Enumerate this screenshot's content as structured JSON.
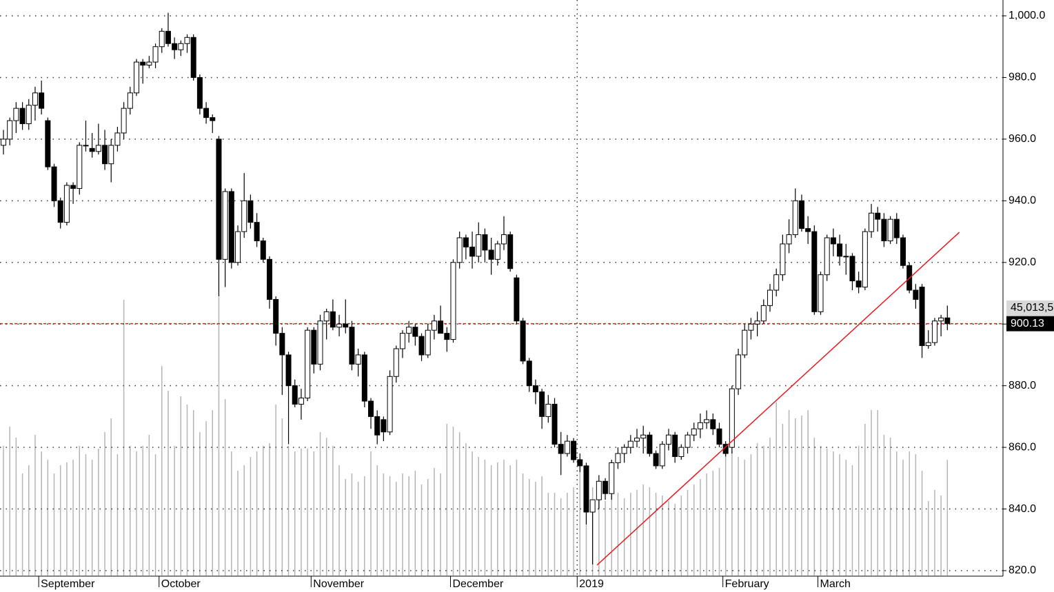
{
  "chart_data": {
    "type": "candlestick",
    "candles": [
      [
        958,
        963,
        955,
        960
      ],
      [
        960,
        967,
        958,
        966
      ],
      [
        966,
        972,
        962,
        970
      ],
      [
        970,
        972,
        963,
        965
      ],
      [
        965,
        973,
        963,
        971
      ],
      [
        971,
        977,
        966,
        975
      ],
      [
        975,
        979,
        968,
        970
      ],
      [
        966,
        967,
        950,
        951
      ],
      [
        951,
        952,
        938,
        940
      ],
      [
        940,
        941,
        931,
        933
      ],
      [
        933,
        946,
        932,
        945
      ],
      [
        945,
        946,
        939,
        944
      ],
      [
        944,
        959,
        942,
        958
      ],
      [
        958,
        966,
        956,
        958
      ],
      [
        957,
        962,
        954,
        956
      ],
      [
        956,
        965,
        955,
        958
      ],
      [
        958,
        963,
        950,
        952
      ],
      [
        952,
        960,
        946,
        958
      ],
      [
        958,
        964,
        956,
        962
      ],
      [
        962,
        972,
        960,
        970
      ],
      [
        970,
        977,
        968,
        975
      ],
      [
        975,
        986,
        974,
        985
      ],
      [
        985,
        986,
        978,
        984
      ],
      [
        984,
        987,
        983,
        985
      ],
      [
        985,
        991,
        983,
        990
      ],
      [
        990,
        996,
        988,
        995
      ],
      [
        995,
        1001,
        990,
        991
      ],
      [
        991,
        993,
        986,
        989
      ],
      [
        989,
        992,
        987,
        991
      ],
      [
        991,
        994,
        988,
        993
      ],
      [
        993,
        994,
        979,
        980
      ],
      [
        980,
        981,
        968,
        970
      ],
      [
        970,
        972,
        965,
        967
      ],
      [
        967,
        968,
        962,
        966
      ],
      [
        960,
        961,
        909,
        921
      ],
      [
        921,
        944,
        912,
        943
      ],
      [
        943,
        944,
        918,
        920
      ],
      [
        920,
        932,
        919,
        930
      ],
      [
        930,
        949,
        928,
        940
      ],
      [
        940,
        942,
        931,
        933
      ],
      [
        933,
        936,
        925,
        927
      ],
      [
        927,
        928,
        920,
        921
      ],
      [
        921,
        922,
        905,
        908
      ],
      [
        908,
        909,
        893,
        897
      ],
      [
        897,
        899,
        877,
        890
      ],
      [
        890,
        891,
        861,
        880
      ],
      [
        880,
        882,
        873,
        874
      ],
      [
        874,
        879,
        869,
        876
      ],
      [
        876,
        899,
        875,
        898
      ],
      [
        898,
        899,
        884,
        887
      ],
      [
        887,
        903,
        885,
        901
      ],
      [
        901,
        905,
        895,
        904
      ],
      [
        904,
        908,
        898,
        899
      ],
      [
        899,
        903,
        896,
        900
      ],
      [
        900,
        908,
        897,
        899
      ],
      [
        899,
        901,
        885,
        887
      ],
      [
        887,
        892,
        883,
        890
      ],
      [
        890,
        891,
        873,
        875
      ],
      [
        875,
        876,
        866,
        870
      ],
      [
        870,
        872,
        861,
        864
      ],
      [
        869,
        870,
        862,
        865
      ],
      [
        865,
        885,
        864,
        883
      ],
      [
        883,
        893,
        881,
        892
      ],
      [
        892,
        898,
        889,
        897
      ],
      [
        897,
        901,
        894,
        899
      ],
      [
        899,
        900,
        893,
        896
      ],
      [
        896,
        897,
        888,
        890
      ],
      [
        890,
        900,
        889,
        898
      ],
      [
        898,
        903,
        895,
        901
      ],
      [
        901,
        906,
        897,
        897
      ],
      [
        897,
        899,
        891,
        895
      ],
      [
        895,
        921,
        894,
        920
      ],
      [
        920,
        930,
        918,
        928
      ],
      [
        928,
        929,
        921,
        925
      ],
      [
        925,
        930,
        918,
        922
      ],
      [
        922,
        933,
        920,
        929
      ],
      [
        929,
        931,
        920,
        924
      ],
      [
        924,
        928,
        916,
        921
      ],
      [
        921,
        927,
        919,
        926
      ],
      [
        926,
        935,
        924,
        929
      ],
      [
        929,
        930,
        917,
        918
      ],
      [
        915,
        916,
        900,
        901
      ],
      [
        901,
        902,
        887,
        888
      ],
      [
        888,
        889,
        878,
        880
      ],
      [
        880,
        882,
        874,
        878
      ],
      [
        878,
        879,
        866,
        870
      ],
      [
        870,
        877,
        868,
        874
      ],
      [
        874,
        876,
        860,
        861
      ],
      [
        861,
        865,
        851,
        858
      ],
      [
        858,
        864,
        857,
        862
      ],
      [
        862,
        863,
        855,
        856
      ],
      [
        856,
        858,
        852,
        854
      ],
      [
        854,
        855,
        835,
        839
      ],
      [
        839,
        843,
        822,
        843
      ],
      [
        843,
        851,
        840,
        849
      ],
      [
        849,
        850,
        843,
        845
      ],
      [
        845,
        856,
        843,
        855
      ],
      [
        855,
        860,
        853,
        858
      ],
      [
        858,
        861,
        855,
        860
      ],
      [
        860,
        864,
        858,
        862
      ],
      [
        862,
        866,
        860,
        863
      ],
      [
        863,
        867,
        858,
        864
      ],
      [
        864,
        865,
        857,
        858
      ],
      [
        858,
        859,
        853,
        854
      ],
      [
        854,
        862,
        853,
        861
      ],
      [
        861,
        866,
        859,
        864
      ],
      [
        864,
        865,
        855,
        857
      ],
      [
        857,
        861,
        856,
        860
      ],
      [
        860,
        865,
        858,
        864
      ],
      [
        864,
        868,
        862,
        866
      ],
      [
        866,
        871,
        863,
        868
      ],
      [
        868,
        872,
        866,
        869
      ],
      [
        869,
        871,
        864,
        866
      ],
      [
        866,
        868,
        860,
        861
      ],
      [
        861,
        862,
        857,
        858
      ],
      [
        860,
        880,
        858,
        879
      ],
      [
        879,
        892,
        877,
        890
      ],
      [
        890,
        900,
        889,
        898
      ],
      [
        898,
        902,
        895,
        900
      ],
      [
        900,
        904,
        896,
        901
      ],
      [
        901,
        908,
        900,
        906
      ],
      [
        906,
        913,
        904,
        911
      ],
      [
        911,
        918,
        909,
        916
      ],
      [
        916,
        929,
        914,
        926
      ],
      [
        926,
        934,
        923,
        929
      ],
      [
        929,
        944,
        928,
        940
      ],
      [
        940,
        942,
        930,
        931
      ],
      [
        931,
        935,
        926,
        930
      ],
      [
        930,
        932,
        903,
        904
      ],
      [
        904,
        917,
        903,
        916
      ],
      [
        916,
        929,
        914,
        928
      ],
      [
        928,
        931,
        922,
        926
      ],
      [
        926,
        929,
        919,
        922
      ],
      [
        922,
        926,
        916,
        922
      ],
      [
        922,
        923,
        911,
        914
      ],
      [
        914,
        917,
        910,
        912
      ],
      [
        912,
        931,
        911,
        930
      ],
      [
        930,
        939,
        928,
        936
      ],
      [
        936,
        938,
        930,
        934
      ],
      [
        934,
        936,
        925,
        927
      ],
      [
        927,
        935,
        926,
        934
      ],
      [
        934,
        936,
        926,
        928
      ],
      [
        928,
        929,
        918,
        919
      ],
      [
        919,
        920,
        910,
        911
      ],
      [
        911,
        913,
        905,
        908
      ],
      [
        912,
        913,
        889,
        893
      ],
      [
        893,
        898,
        892,
        894
      ],
      [
        894,
        902,
        893,
        901
      ],
      [
        901,
        903,
        896,
        902
      ],
      [
        902,
        906,
        898,
        900.13
      ]
    ],
    "volume": [
      47,
      54,
      50,
      37,
      40,
      51,
      45,
      42,
      37,
      40,
      41,
      42,
      47,
      44,
      42,
      46,
      52,
      57,
      44,
      100,
      47,
      45,
      47,
      51,
      44,
      76,
      67,
      47,
      65,
      62,
      60,
      52,
      56,
      60,
      101,
      64,
      45,
      38,
      40,
      43,
      45,
      47,
      48,
      62,
      57,
      47,
      45,
      46,
      46,
      45,
      52,
      50,
      47,
      40,
      35,
      37,
      34,
      36,
      45,
      40,
      37,
      36,
      34,
      37,
      36,
      38,
      33,
      35,
      39,
      37,
      55,
      54,
      52,
      48,
      45,
      43,
      42,
      40,
      41,
      42,
      40,
      42,
      37,
      35,
      34,
      36,
      30,
      30,
      28,
      30,
      32,
      38,
      35,
      32,
      30,
      27,
      29,
      30,
      28,
      30,
      31,
      33,
      32,
      30,
      29,
      27,
      26,
      29,
      31,
      33,
      35,
      37,
      38,
      39,
      44,
      45,
      43,
      42,
      44,
      48,
      47,
      50,
      63,
      55,
      60,
      57,
      58,
      60,
      50,
      47,
      46,
      45,
      44,
      42,
      40,
      47,
      55,
      60,
      60,
      51,
      50,
      45,
      42,
      45,
      44,
      38,
      27,
      31,
      29,
      42
    ],
    "volume_lim": [
      0,
      105
    ],
    "volume_label": "45,013,5",
    "categories": [
      null,
      null,
      null,
      null,
      null,
      null,
      "September",
      null,
      null,
      null,
      null,
      null,
      null,
      null,
      null,
      null,
      null,
      null,
      null,
      null,
      null,
      null,
      null,
      null,
      null,
      "October",
      null,
      null,
      null,
      null,
      null,
      null,
      null,
      null,
      null,
      null,
      null,
      null,
      null,
      null,
      null,
      null,
      null,
      null,
      null,
      null,
      null,
      null,
      null,
      "November",
      null,
      null,
      null,
      null,
      null,
      null,
      null,
      null,
      null,
      null,
      null,
      null,
      null,
      null,
      null,
      null,
      null,
      null,
      null,
      null,
      null,
      "December",
      null,
      null,
      null,
      null,
      null,
      null,
      null,
      null,
      null,
      null,
      null,
      null,
      null,
      null,
      null,
      null,
      null,
      null,
      null,
      "2019",
      null,
      null,
      null,
      null,
      null,
      null,
      null,
      null,
      null,
      null,
      null,
      null,
      null,
      null,
      null,
      null,
      null,
      null,
      null,
      null,
      null,
      null,
      "February",
      null,
      null,
      null,
      null,
      null,
      null,
      null,
      null,
      null,
      null,
      null,
      null,
      null,
      null,
      "March",
      null,
      null,
      null,
      null,
      null,
      null,
      null,
      null,
      null,
      null,
      null,
      null,
      null,
      null,
      null,
      null,
      null,
      null,
      null,
      null
    ],
    "ylim": [
      820,
      1000
    ],
    "yticks": [
      {
        "value": 820,
        "label": "820.0"
      },
      {
        "value": 840,
        "label": "840.0"
      },
      {
        "value": 860,
        "label": "860.0"
      },
      {
        "value": 880,
        "label": "880.0"
      },
      {
        "value": 900,
        "label": "900.0"
      },
      {
        "value": 920,
        "label": "920.0"
      },
      {
        "value": 940,
        "label": "940.0"
      },
      {
        "value": 960,
        "label": "960.0"
      },
      {
        "value": 980,
        "label": "980.0"
      },
      {
        "value": 1000,
        "label": "1,000.0"
      }
    ],
    "grid": true,
    "up_color": "#ffffff",
    "down_color": "#000000",
    "volume_color": "#b4b4b4",
    "trendline": {
      "from": [
        93.7,
        821.8
      ],
      "to": [
        150.9,
        929.8
      ],
      "color": "#e8171b"
    },
    "last_line_color": "#e8171b"
  }
}
